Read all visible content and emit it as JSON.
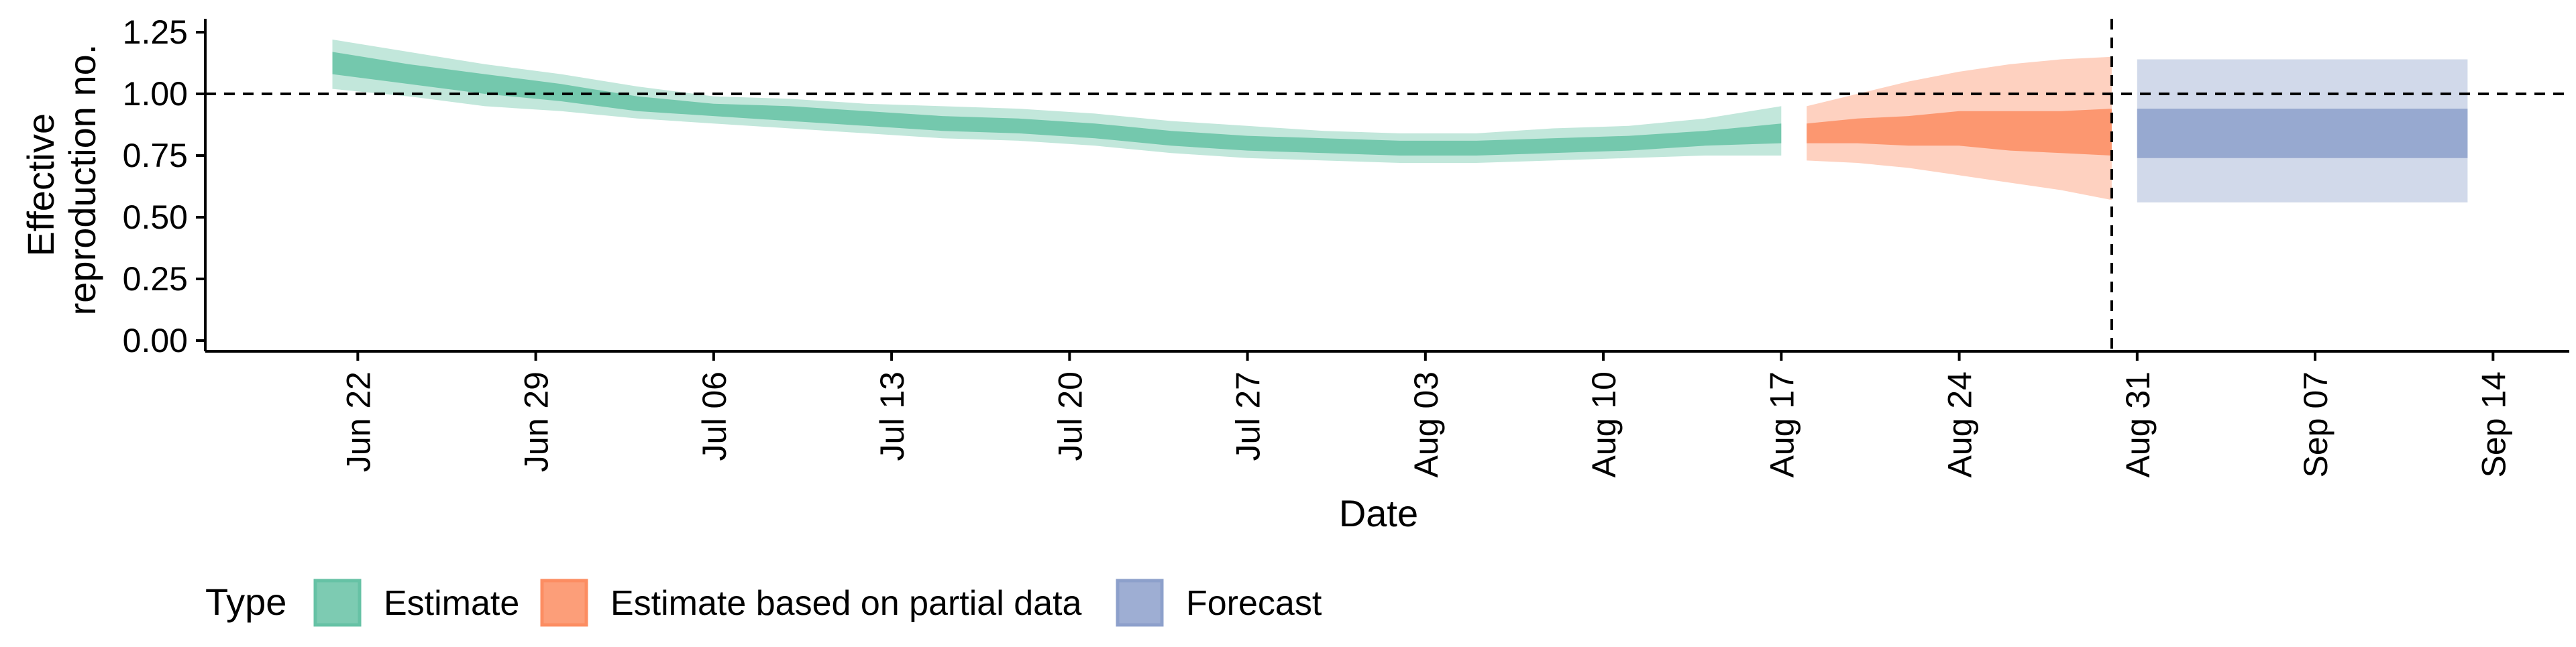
{
  "chart_data": {
    "type": "area",
    "xlabel": "Date",
    "ylabel": [
      "Effective",
      "reproduction no."
    ],
    "ylim": [
      0,
      1.25
    ],
    "yticks": [
      0.0,
      0.25,
      0.5,
      0.75,
      1.0,
      1.25
    ],
    "ytick_labels": [
      "0.00",
      "0.25",
      "0.50",
      "0.75",
      "1.00",
      "1.25"
    ],
    "xlim": [
      "2020-06-16",
      "2020-09-17"
    ],
    "xticks": [
      "2020-06-22",
      "2020-06-29",
      "2020-07-06",
      "2020-07-13",
      "2020-07-20",
      "2020-07-27",
      "2020-08-03",
      "2020-08-10",
      "2020-08-17",
      "2020-08-24",
      "2020-08-31",
      "2020-09-07",
      "2020-09-14"
    ],
    "xtick_labels": [
      "Jun 22",
      "Jun 29",
      "Jul 06",
      "Jul 13",
      "Jul 20",
      "Jul 27",
      "Aug 03",
      "Aug 10",
      "Aug 17",
      "Aug 24",
      "Aug 31",
      "Sep 07",
      "Sep 14"
    ],
    "reference_lines": {
      "horizontal_y": 1.0,
      "vertical_date": "2020-08-30"
    },
    "grid": false,
    "legend": {
      "title": "Type",
      "position": "bottom-left",
      "entries": [
        "Estimate",
        "Estimate based on partial data",
        "Forecast"
      ]
    },
    "series": [
      {
        "name": "Estimate",
        "color": "#66c2a5",
        "dates": [
          "2020-06-21",
          "2020-06-24",
          "2020-06-27",
          "2020-06-30",
          "2020-07-03",
          "2020-07-06",
          "2020-07-09",
          "2020-07-12",
          "2020-07-15",
          "2020-07-18",
          "2020-07-21",
          "2020-07-24",
          "2020-07-27",
          "2020-07-30",
          "2020-08-02",
          "2020-08-05",
          "2020-08-08",
          "2020-08-11",
          "2020-08-14",
          "2020-08-17"
        ],
        "median": [
          1.12,
          1.08,
          1.04,
          1.0,
          0.96,
          0.93,
          0.92,
          0.9,
          0.88,
          0.87,
          0.85,
          0.82,
          0.8,
          0.79,
          0.78,
          0.78,
          0.79,
          0.8,
          0.82,
          0.84
        ],
        "lower_50": [
          1.08,
          1.04,
          1.0,
          0.97,
          0.93,
          0.91,
          0.89,
          0.87,
          0.85,
          0.84,
          0.82,
          0.79,
          0.77,
          0.76,
          0.75,
          0.75,
          0.76,
          0.77,
          0.79,
          0.8
        ],
        "upper_50": [
          1.17,
          1.12,
          1.08,
          1.04,
          0.99,
          0.96,
          0.95,
          0.93,
          0.91,
          0.9,
          0.88,
          0.85,
          0.83,
          0.82,
          0.81,
          0.81,
          0.82,
          0.83,
          0.85,
          0.88
        ],
        "lower_90": [
          1.02,
          0.99,
          0.95,
          0.93,
          0.9,
          0.88,
          0.86,
          0.84,
          0.82,
          0.81,
          0.79,
          0.76,
          0.74,
          0.73,
          0.72,
          0.72,
          0.73,
          0.74,
          0.75,
          0.75
        ],
        "upper_90": [
          1.22,
          1.17,
          1.12,
          1.08,
          1.03,
          0.99,
          0.98,
          0.96,
          0.95,
          0.94,
          0.92,
          0.89,
          0.87,
          0.85,
          0.84,
          0.84,
          0.86,
          0.87,
          0.9,
          0.95
        ]
      },
      {
        "name": "Estimate based on partial data",
        "color": "#fc8d62",
        "dates": [
          "2020-08-18",
          "2020-08-20",
          "2020-08-22",
          "2020-08-24",
          "2020-08-26",
          "2020-08-28",
          "2020-08-30"
        ],
        "median": [
          0.84,
          0.85,
          0.85,
          0.86,
          0.85,
          0.84,
          0.84
        ],
        "lower_50": [
          0.8,
          0.8,
          0.79,
          0.79,
          0.77,
          0.76,
          0.75
        ],
        "upper_50": [
          0.88,
          0.9,
          0.91,
          0.93,
          0.93,
          0.93,
          0.94
        ],
        "lower_90": [
          0.73,
          0.72,
          0.7,
          0.67,
          0.64,
          0.61,
          0.57
        ],
        "upper_90": [
          0.95,
          1.0,
          1.05,
          1.09,
          1.12,
          1.14,
          1.15
        ]
      },
      {
        "name": "Forecast",
        "color": "#8da0cb",
        "dates": [
          "2020-08-31",
          "2020-09-13"
        ],
        "lower_50": [
          0.74,
          0.74
        ],
        "upper_50": [
          0.94,
          0.94
        ],
        "lower_90": [
          0.56,
          0.56
        ],
        "upper_90": [
          1.14,
          1.14
        ]
      }
    ]
  }
}
